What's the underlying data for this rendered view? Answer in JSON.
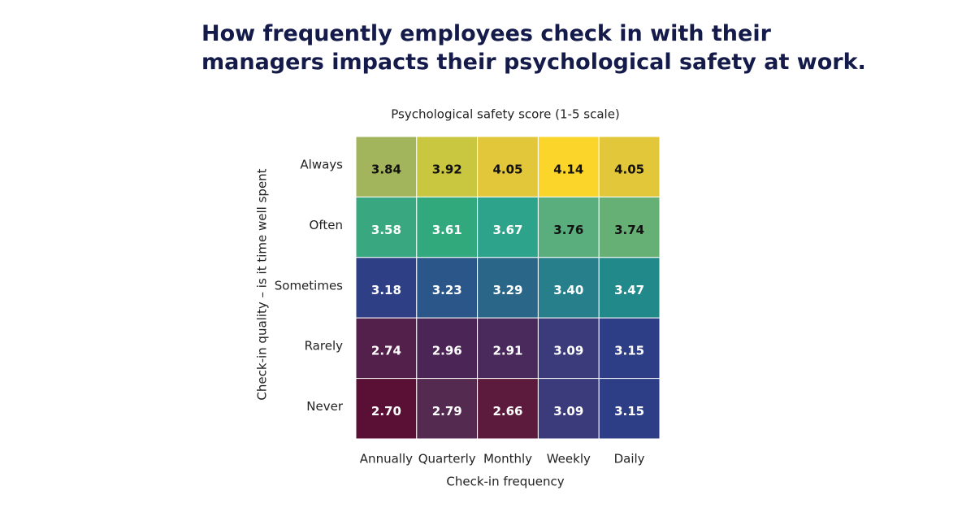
{
  "chart_data": {
    "type": "heatmap",
    "title": "How frequently employees check in with their managers impacts their psychological safety at work.",
    "subtitle": "Psychological safety score (1-5 scale)",
    "x_label": "Check-in frequency",
    "y_label": "Check-in quality – is it time well spent",
    "x_categories": [
      "Annually",
      "Quarterly",
      "Monthly",
      "Weekly",
      "Daily"
    ],
    "y_categories": [
      "Always",
      "Often",
      "Sometimes",
      "Rarely",
      "Never"
    ],
    "values": [
      [
        3.84,
        3.92,
        4.05,
        4.14,
        4.05
      ],
      [
        3.58,
        3.61,
        3.67,
        3.76,
        3.74
      ],
      [
        3.18,
        3.23,
        3.29,
        3.4,
        3.47
      ],
      [
        2.74,
        2.96,
        2.91,
        3.09,
        3.15
      ],
      [
        2.7,
        2.79,
        2.66,
        3.09,
        3.15
      ]
    ],
    "value_labels": [
      [
        "3.84",
        "3.92",
        "4.05",
        "4.14",
        "4.05"
      ],
      [
        "3.58",
        "3.61",
        "3.67",
        "3.76",
        "3.74"
      ],
      [
        "3.18",
        "3.23",
        "3.29",
        "3.40",
        "3.47"
      ],
      [
        "2.74",
        "2.96",
        "2.91",
        "3.09",
        "3.15"
      ],
      [
        "2.70",
        "2.79",
        "2.66",
        "3.09",
        "3.15"
      ]
    ],
    "colors": [
      [
        "#a3b55c",
        "#c9c640",
        "#e3c73a",
        "#fcd52a",
        "#e3c73a"
      ],
      [
        "#39a780",
        "#32a97c",
        "#2ca38a",
        "#5aae7e",
        "#66b075"
      ],
      [
        "#2e3f86",
        "#2b5689",
        "#2a6688",
        "#277f8c",
        "#21898a"
      ],
      [
        "#53204b",
        "#4a2556",
        "#4a2a5c",
        "#3b3a7a",
        "#2e3e86"
      ],
      [
        "#5a1034",
        "#552a50",
        "#5c1b3c",
        "#3b3a7a",
        "#2e3e86"
      ]
    ]
  }
}
